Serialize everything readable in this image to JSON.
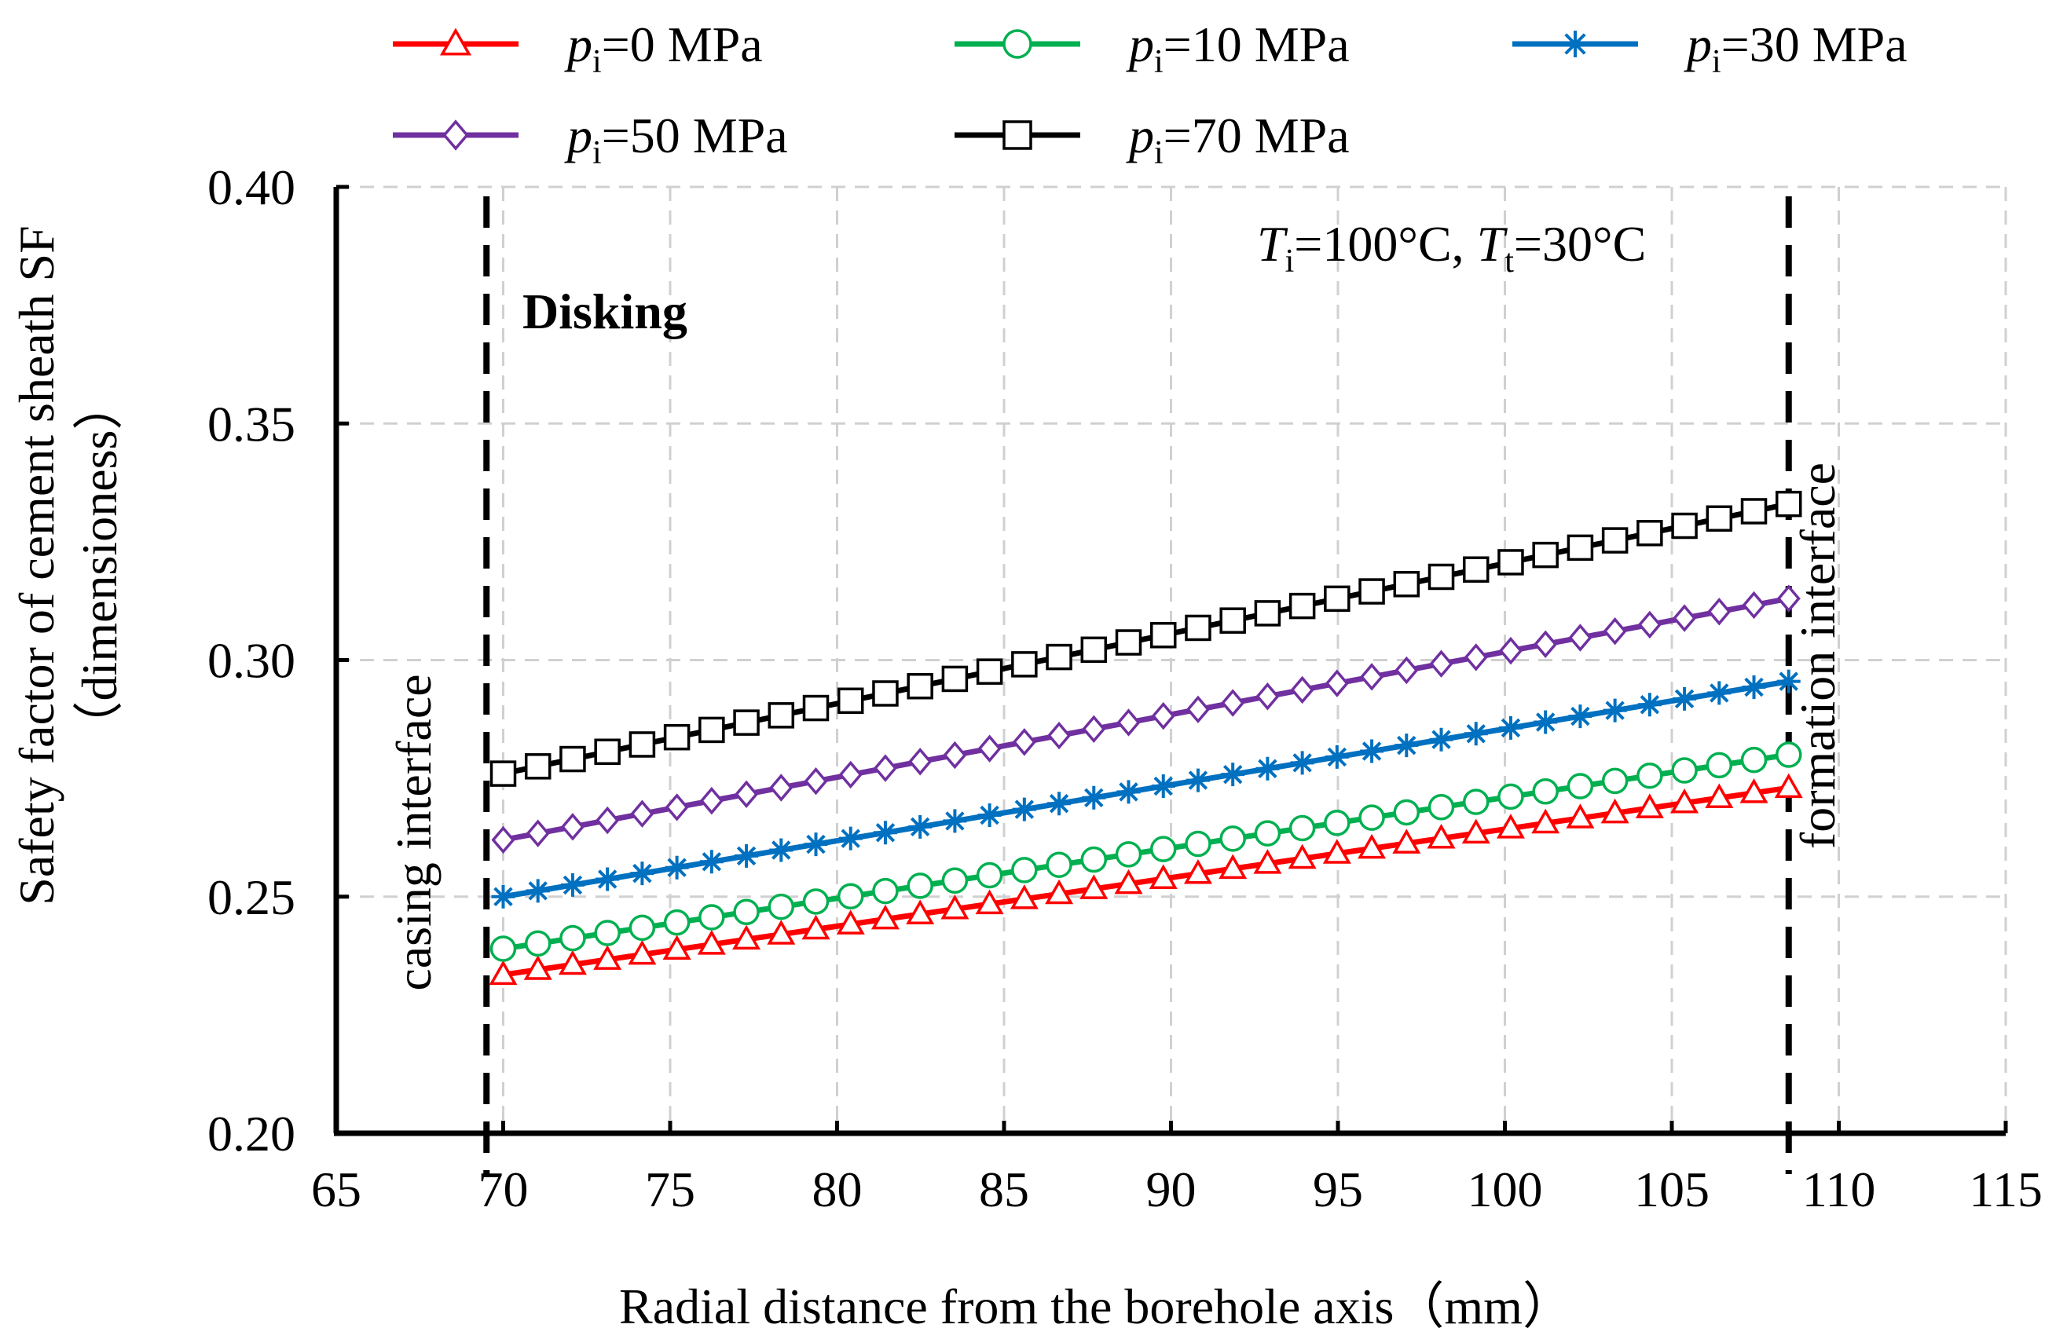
{
  "chart_data": {
    "type": "line",
    "xlabel": "Radial distance from  the borehole axis（mm）",
    "ylabel_line1": "Safety factor of cement sheath SF",
    "ylabel_line2": "（dimensioness）",
    "xlim": [
      65,
      115
    ],
    "ylim": [
      0.2,
      0.4
    ],
    "x_ticks": [
      "65",
      "70",
      "75",
      "80",
      "85",
      "90",
      "95",
      "100",
      "105",
      "110",
      "115"
    ],
    "x_tick_values": [
      65,
      70,
      75,
      80,
      85,
      90,
      95,
      100,
      105,
      110,
      115
    ],
    "y_ticks": [
      "0.20",
      "0.25",
      "0.30",
      "0.35",
      "0.40"
    ],
    "y_tick_values": [
      0.2,
      0.25,
      0.3,
      0.35,
      0.4
    ],
    "grid": true,
    "x_range": [
      70,
      108.5
    ],
    "marker_count": 38,
    "series": [
      {
        "name": "p_i=0 MPa",
        "var": "p",
        "sub": "i",
        "rest": "=0 MPa",
        "color": "#ff0000",
        "marker": "triangle",
        "y_start": 0.2335,
        "y_end": 0.273
      },
      {
        "name": "p_i=10 MPa",
        "var": "p",
        "sub": "i",
        "rest": "=10 MPa",
        "color": "#00b050",
        "marker": "circle",
        "y_start": 0.239,
        "y_end": 0.28
      },
      {
        "name": "p_i=30 MPa",
        "var": "p",
        "sub": "i",
        "rest": "=30 MPa",
        "color": "#0070c0",
        "marker": "star",
        "y_start": 0.25,
        "y_end": 0.2955
      },
      {
        "name": "p_i=50 MPa",
        "var": "p",
        "sub": "i",
        "rest": "=50 MPa",
        "color": "#7030a0",
        "marker": "diamond",
        "y_start": 0.262,
        "y_end": 0.313
      },
      {
        "name": "p_i=70 MPa",
        "var": "p",
        "sub": "i",
        "rest": "=70 MPa",
        "color": "#000000",
        "marker": "square",
        "y_start": 0.276,
        "y_end": 0.333
      }
    ],
    "vlines": [
      {
        "x": 69.5,
        "label": "casing  interface"
      },
      {
        "x": 108.5,
        "label": "formation  interface"
      }
    ],
    "annotations": {
      "disking": "Disking",
      "temp_var1": "T",
      "temp_sub1": "i",
      "temp_rest1": "=100°C,  ",
      "temp_var2": "T",
      "temp_sub2": "t",
      "temp_rest2": "=30°C"
    }
  }
}
